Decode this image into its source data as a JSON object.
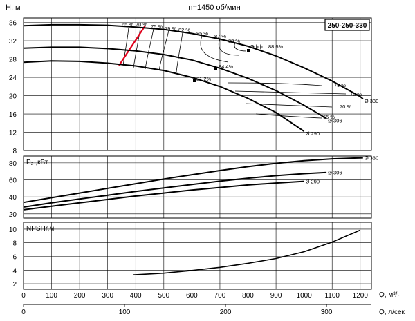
{
  "title": "n=1450 об/мин",
  "model": "250-250-330",
  "axes": {
    "q_m3h": {
      "label": "Q, м³/ч",
      "ticks": [
        "0",
        "100",
        "200",
        "300",
        "400",
        "500",
        "600",
        "700",
        "800",
        "900",
        "1000",
        "1100",
        "1200"
      ]
    },
    "q_ls": {
      "label": "Q, л/сек",
      "ticks": [
        "0",
        "100",
        "200",
        "300"
      ]
    },
    "head": {
      "label": "H, м",
      "ticks": [
        "8",
        "12",
        "16",
        "20",
        "24",
        "28",
        "32",
        "36"
      ]
    },
    "power": {
      "label": "P₂ ,кВт",
      "ticks": [
        "20",
        "40",
        "60",
        "80"
      ]
    },
    "npsh": {
      "label": "NPSHr,м",
      "ticks": [
        "2",
        "4",
        "6",
        "8",
        "10"
      ]
    }
  },
  "chart_data": [
    {
      "type": "line",
      "panel": "head",
      "ylabel": "H, м",
      "xlabel": "Q, м³/ч",
      "xlim": [
        0,
        1240
      ],
      "ylim": [
        8,
        37
      ],
      "series": [
        {
          "name": "Ø 330",
          "x": [
            0,
            100,
            200,
            300,
            400,
            500,
            600,
            700,
            800,
            900,
            1000,
            1100,
            1200,
            1210
          ],
          "y": [
            35.3,
            35.5,
            35.5,
            35.4,
            35.0,
            34.5,
            33.6,
            32.4,
            30.8,
            28.7,
            26.1,
            23.2,
            19.8,
            19.3
          ]
        },
        {
          "name": "Ø 306",
          "x": [
            0,
            100,
            200,
            300,
            400,
            500,
            600,
            700,
            800,
            900,
            1000,
            1080
          ],
          "y": [
            30.4,
            30.6,
            30.6,
            30.3,
            29.8,
            29.0,
            27.8,
            26.0,
            23.8,
            21.1,
            17.9,
            15.0
          ]
        },
        {
          "name": "Ø 290",
          "x": [
            0,
            100,
            200,
            300,
            400,
            500,
            600,
            700,
            800,
            900,
            1000
          ],
          "y": [
            27.3,
            27.6,
            27.5,
            27.1,
            26.5,
            25.5,
            24.0,
            22.0,
            19.4,
            16.3,
            12.2
          ]
        }
      ],
      "efficiency_labels": [
        "65 %",
        "70 %",
        "75 %",
        "79 %",
        "82 %",
        "85 %",
        "87 %",
        "88 %",
        "Эфф",
        "88,6%",
        "84,4%",
        "81,2%",
        "79 %",
        "75 %",
        "70 %",
        "65 %"
      ]
    },
    {
      "type": "line",
      "panel": "power",
      "ylabel": "P₂ ,кВт",
      "xlim": [
        0,
        1240
      ],
      "ylim": [
        15,
        88
      ],
      "series": [
        {
          "name": "Ø 330",
          "x": [
            0,
            100,
            200,
            300,
            400,
            500,
            600,
            700,
            800,
            900,
            1000,
            1100,
            1200,
            1210
          ],
          "y": [
            33.5,
            39,
            44.5,
            50,
            55.5,
            61,
            66,
            71,
            75.5,
            79.5,
            82.5,
            84.7,
            85.8,
            85.9
          ]
        },
        {
          "name": "Ø 306",
          "x": [
            0,
            100,
            200,
            300,
            400,
            500,
            600,
            700,
            800,
            900,
            1000,
            1080
          ],
          "y": [
            28,
            33,
            37.5,
            42,
            46.5,
            50.5,
            54.5,
            58.5,
            62,
            65,
            67.3,
            68.8
          ]
        },
        {
          "name": "Ø 290",
          "x": [
            0,
            100,
            200,
            300,
            400,
            500,
            600,
            700,
            800,
            900,
            1000
          ],
          "y": [
            24.8,
            29,
            33,
            37,
            41,
            44.5,
            48,
            51,
            54,
            56.3,
            58.3
          ]
        }
      ]
    },
    {
      "type": "line",
      "panel": "npsh",
      "ylabel": "NPSHr,м",
      "xlim": [
        0,
        1240
      ],
      "ylim": [
        1.2,
        11
      ],
      "series": [
        {
          "x": [
            390,
            500,
            600,
            700,
            800,
            900,
            1000,
            1100,
            1200
          ],
          "y": [
            3.3,
            3.55,
            3.95,
            4.4,
            5.0,
            5.7,
            6.7,
            8.1,
            9.85
          ]
        }
      ]
    }
  ]
}
